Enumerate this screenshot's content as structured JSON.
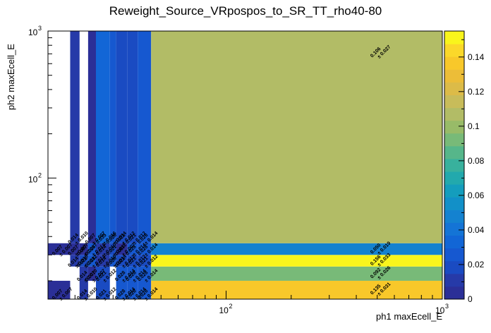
{
  "chart_data": {
    "type": "heatmap",
    "title": "Reweight_Source_VRpospos_to_SR_TT_rho40-80",
    "xlabel": "ph1 maxEcell_E",
    "ylabel": "ph2 maxEcell_E",
    "xscale": "log",
    "yscale": "log",
    "xlim": [
      15,
      1000
    ],
    "ylim": [
      15,
      1000
    ],
    "x_tick_labels": [
      {
        "value": 100,
        "base": "10",
        "exp": "2"
      },
      {
        "value": 1000,
        "base": "10",
        "exp": "3"
      }
    ],
    "y_tick_labels": [
      {
        "value": 100,
        "base": "10",
        "exp": "2"
      },
      {
        "value": 1000,
        "base": "10",
        "exp": "3"
      }
    ],
    "colorbar": {
      "min": 0,
      "max": 0.155,
      "tick_labels": [
        "0",
        "0.02",
        "0.04",
        "0.06",
        "0.08",
        "0.1",
        "0.12",
        "0.14"
      ],
      "tick_values": [
        0,
        0.02,
        0.04,
        0.06,
        0.08,
        0.1,
        0.12,
        0.14
      ],
      "palette": [
        "#2b2f97",
        "#263aa8",
        "#1a4bc2",
        "#1658d0",
        "#1266d6",
        "#1474d6",
        "#1482d0",
        "#1290c8",
        "#149dbd",
        "#22a9ad",
        "#38b19d",
        "#56b68a",
        "#78ba78",
        "#98bb68",
        "#b2bc66",
        "#c8bc5a",
        "#dcbb48",
        "#ecbd38",
        "#f8c82a",
        "#fbd82a",
        "#f9f51c"
      ]
    },
    "x_edges": [
      15,
      19,
      21,
      23,
      25,
      29,
      31,
      35,
      39,
      45,
      1000
    ],
    "y_edges": [
      15,
      20,
      25,
      30,
      36,
      1000
    ],
    "bins": [
      {
        "xi": 0,
        "yi": 0,
        "v": 0.007,
        "label": "0.007",
        "err": "± 0.007"
      },
      {
        "xi": 2,
        "yi": 0,
        "v": 0.014,
        "label": "0.014",
        "err": "± 0.010"
      },
      {
        "xi": 4,
        "yi": 0,
        "v": 0.021,
        "label": "0.021",
        "err": "± 0.012"
      },
      {
        "xi": 6,
        "yi": 0,
        "v": 0.028,
        "label": "0.028",
        "err": "± 0.014"
      },
      {
        "xi": 7,
        "yi": 0,
        "v": 0.028,
        "label": "0.028",
        "err": "± 0.014"
      },
      {
        "xi": 8,
        "yi": 0,
        "v": 0.028,
        "label": "0.028",
        "err": "± 0.014"
      },
      {
        "xi": 9,
        "yi": 0,
        "v": 0.135,
        "label": "0.135",
        "err": "± 0.031"
      },
      {
        "xi": 2,
        "yi": 1,
        "v": 0.014,
        "label": "0.014",
        "err": "± 0.010"
      },
      {
        "xi": 3,
        "yi": 1,
        "v": 0.007,
        "label": "0.007",
        "err": "± 0.007"
      },
      {
        "xi": 4,
        "yi": 1,
        "v": 0.021,
        "label": "0.021",
        "err": "± 0.012"
      },
      {
        "xi": 6,
        "yi": 1,
        "v": 0.028,
        "label": "0.028",
        "err": "± 0.014"
      },
      {
        "xi": 7,
        "yi": 1,
        "v": 0.028,
        "label": "0.028",
        "err": "± 0.014"
      },
      {
        "xi": 8,
        "yi": 1,
        "v": 0.028,
        "label": "0.028",
        "err": "± 0.014"
      },
      {
        "xi": 9,
        "yi": 1,
        "v": 0.092,
        "label": "0.092",
        "err": "± 0.026"
      },
      {
        "xi": 1,
        "yi": 2,
        "v": 0.014,
        "label": "0.014",
        "err": "± 0.010"
      },
      {
        "xi": 2,
        "yi": 2,
        "v": 0.021,
        "label": "0.021",
        "err": "± 0.012"
      },
      {
        "xi": 3,
        "yi": 2,
        "v": 0.028,
        "label": "0.028",
        "err": "± 0.014"
      },
      {
        "xi": 4,
        "yi": 2,
        "v": 0.014,
        "label": "0.014",
        "err": "± 0.010"
      },
      {
        "xi": 5,
        "yi": 2,
        "v": 0.028,
        "label": "0.028",
        "err": "± 0.014"
      },
      {
        "xi": 6,
        "yi": 2,
        "v": 0.021,
        "label": "0.021",
        "err": "± 0.012"
      },
      {
        "xi": 7,
        "yi": 2,
        "v": 0.021,
        "label": "0.021",
        "err": "± 0.012"
      },
      {
        "xi": 8,
        "yi": 2,
        "v": 0.021,
        "label": "0.021",
        "err": "± 0.012"
      },
      {
        "xi": 9,
        "yi": 2,
        "v": 0.156,
        "label": "0.156",
        "err": "± 0.033"
      },
      {
        "xi": 0,
        "yi": 3,
        "v": 0.007,
        "label": "0.007",
        "err": "± 0.007"
      },
      {
        "xi": 1,
        "yi": 3,
        "v": 0.007,
        "label": "0.007",
        "err": "± 0.007"
      },
      {
        "xi": 2,
        "yi": 3,
        "v": 0.007,
        "label": "0.007",
        "err": "± 0.007"
      },
      {
        "xi": 3,
        "yi": 3,
        "v": 0.028,
        "label": "0.028",
        "err": "± 0.014"
      },
      {
        "xi": 4,
        "yi": 3,
        "v": 0.014,
        "label": "0.014",
        "err": "± 0.010"
      },
      {
        "xi": 5,
        "yi": 3,
        "v": 0.021,
        "label": "0.021",
        "err": "± 0.012"
      },
      {
        "xi": 6,
        "yi": 3,
        "v": 0.007,
        "label": "0.007",
        "err": "± 0.007"
      },
      {
        "xi": 7,
        "yi": 3,
        "v": 0.028,
        "label": "0.028",
        "err": "± 0.014"
      },
      {
        "xi": 8,
        "yi": 3,
        "v": 0.028,
        "label": "0.028",
        "err": "± 0.014"
      },
      {
        "xi": 9,
        "yi": 3,
        "v": 0.05,
        "label": "0.050",
        "err": "± 0.019"
      },
      {
        "xi": 1,
        "yi": 4,
        "v": 0.014,
        "label": "0.014",
        "err": "± 0.010"
      },
      {
        "xi": 3,
        "yi": 4,
        "v": 0.007,
        "label": "0.007",
        "err": "± 0.007"
      },
      {
        "xi": 4,
        "yi": 4,
        "v": 0.035,
        "label": "0.035",
        "err": "± 0.016"
      },
      {
        "xi": 5,
        "yi": 4,
        "v": 0.028,
        "label": "0.028",
        "err": "± 0.014"
      },
      {
        "xi": 6,
        "yi": 4,
        "v": 0.021,
        "label": "0.021",
        "err": "± 0.012"
      },
      {
        "xi": 7,
        "yi": 4,
        "v": 0.021,
        "label": "0.021",
        "err": "± 0.012"
      },
      {
        "xi": 8,
        "yi": 4,
        "v": 0.028,
        "label": "0.028",
        "err": "± 0.014"
      },
      {
        "xi": 9,
        "yi": 4,
        "v": 0.106,
        "label": "0.106",
        "err": "± 0.027"
      }
    ]
  }
}
